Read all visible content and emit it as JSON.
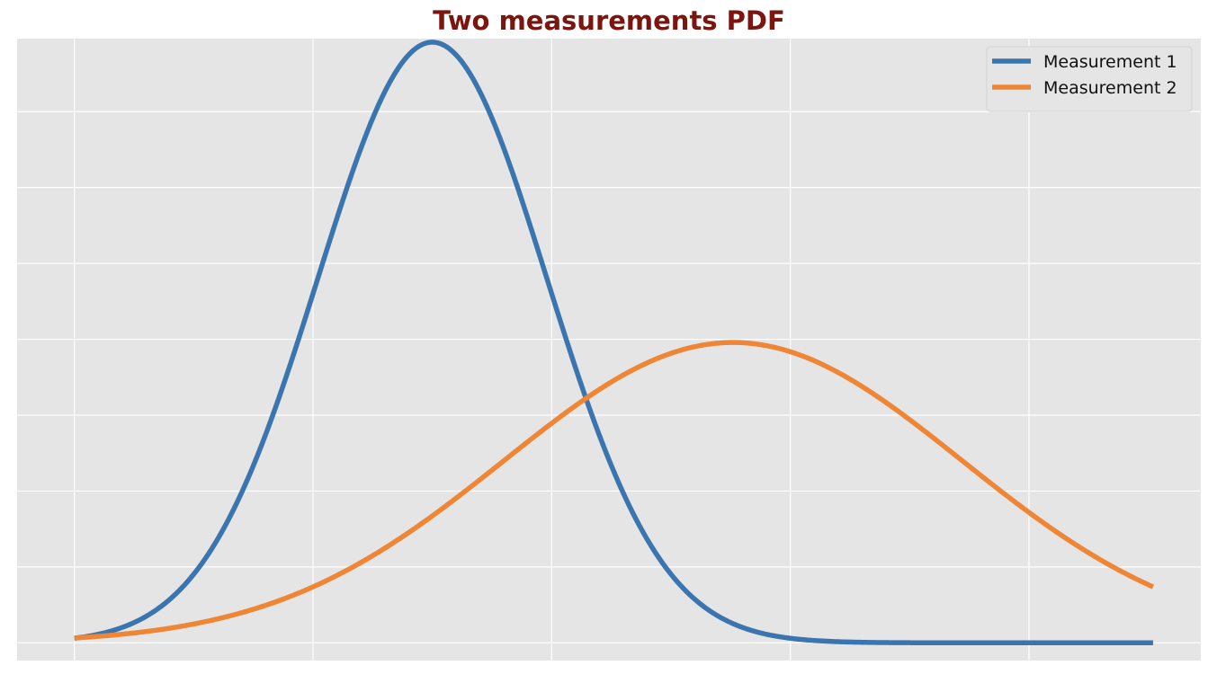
{
  "chart_data": {
    "type": "line",
    "title": "Two measurements PDF",
    "xlabel": "",
    "ylabel": "",
    "xlim": [
      -4.5,
      20.3
    ],
    "ylim": [
      -0.0049,
      0.1672
    ],
    "grid": true,
    "x_gridlines": [
      -3.3,
      1.7,
      6.7,
      11.7,
      16.7
    ],
    "y_gridlines": [
      0,
      0.021,
      0.042,
      0.063,
      0.084,
      0.105,
      0.126,
      0.147
    ],
    "x_range": [
      -3.3,
      19.3
    ],
    "legend_position": "top-right",
    "colors": {
      "title": "#7b1510",
      "background": "#e5e5e5",
      "grid": "#ffffff"
    },
    "series": [
      {
        "name": "Measurement 1",
        "distribution": "normal",
        "mean": 4.2,
        "sd": 2.4,
        "color": "#3a75b0"
      },
      {
        "name": "Measurement 2",
        "distribution": "normal",
        "mean": 10.5,
        "sd": 4.8,
        "color": "#ee8636"
      }
    ]
  }
}
